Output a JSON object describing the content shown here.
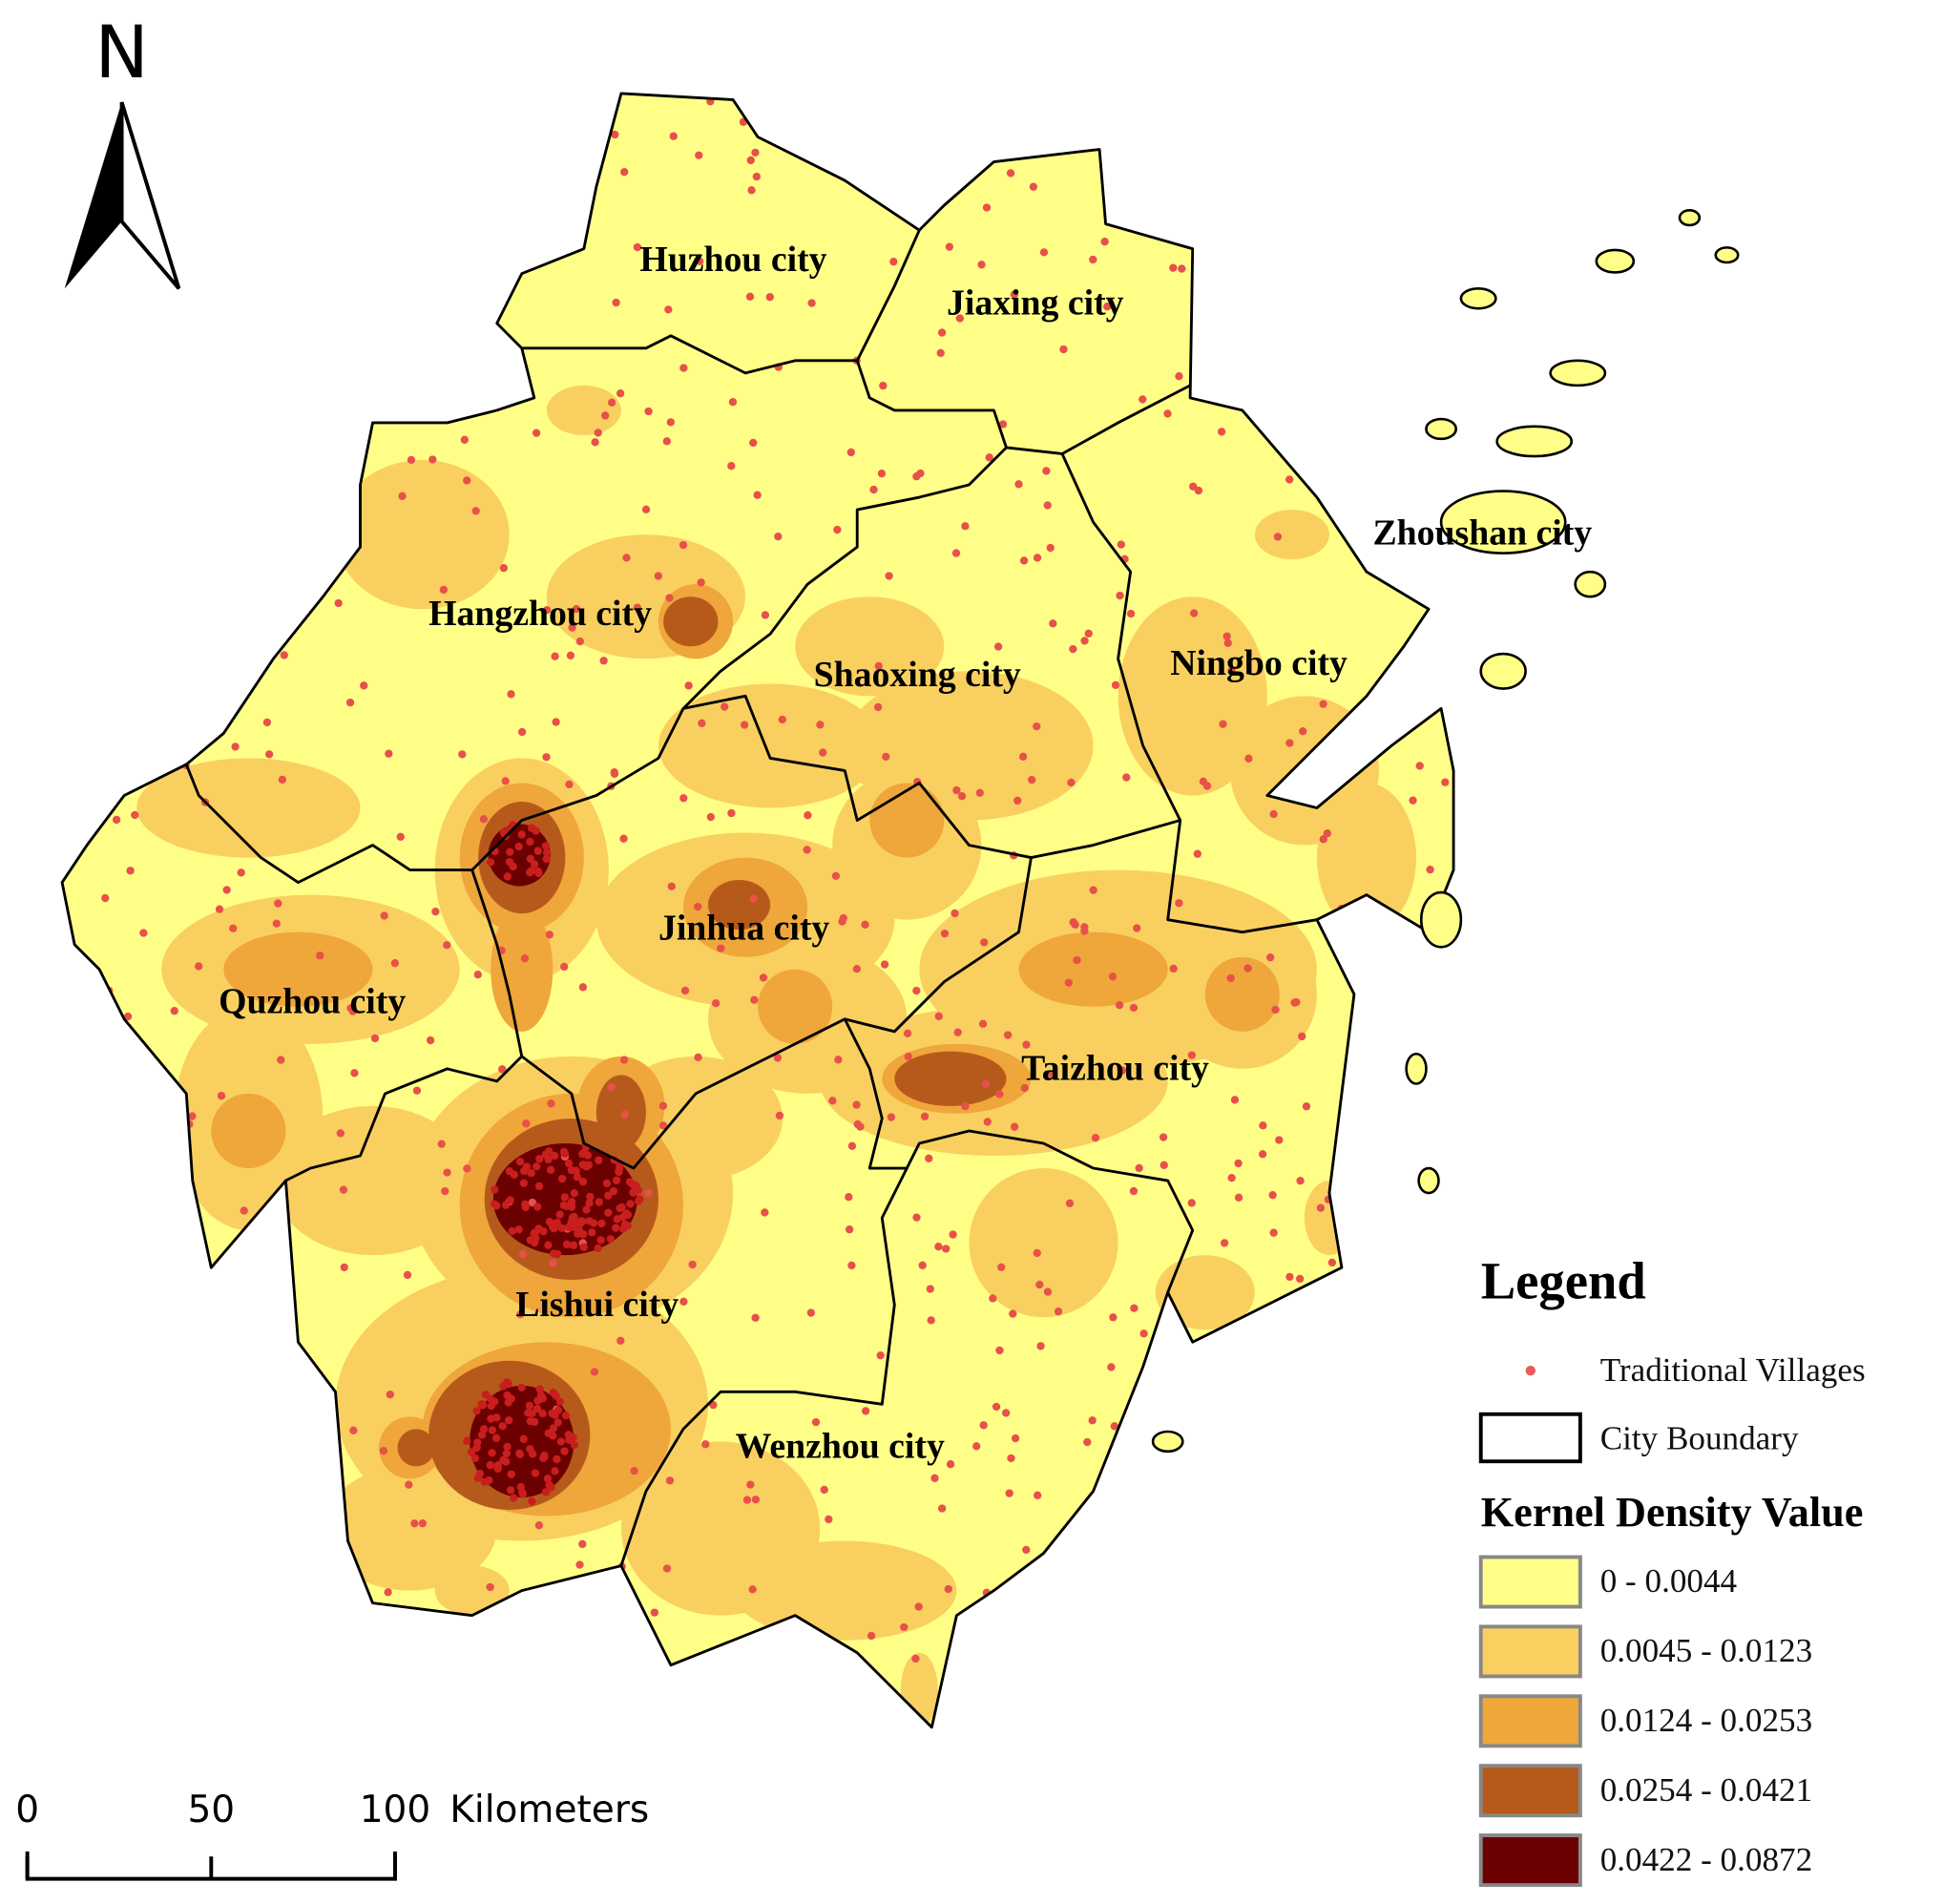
{
  "north_label": "N",
  "cities": [
    "Huzhou city",
    "Jiaxing city",
    "Hangzhou city",
    "Shaoxing city",
    "Ningbo city",
    "Zhoushan city",
    "Jinhua city",
    "Quzhou city",
    "Taizhou city",
    "Lishui city",
    "Wenzhou city"
  ],
  "legend": {
    "title": "Legend",
    "items": [
      "Traditional Villages",
      "City Boundary"
    ],
    "density_title": "Kernel Density Value",
    "classes": [
      {
        "label": "0 - 0.0044",
        "color": "#ffff88"
      },
      {
        "label": "0.0045 - 0.0123",
        "color": "#f9d060"
      },
      {
        "label": "0.0124 - 0.0253",
        "color": "#efa63a"
      },
      {
        "label": "0.0254 - 0.0421",
        "color": "#b65a1c"
      },
      {
        "label": "0.0422 - 0.0872",
        "color": "#6b0000"
      }
    ]
  },
  "scale_bar": {
    "ticks": [
      0,
      50,
      100
    ],
    "unit": "Kilometers"
  }
}
